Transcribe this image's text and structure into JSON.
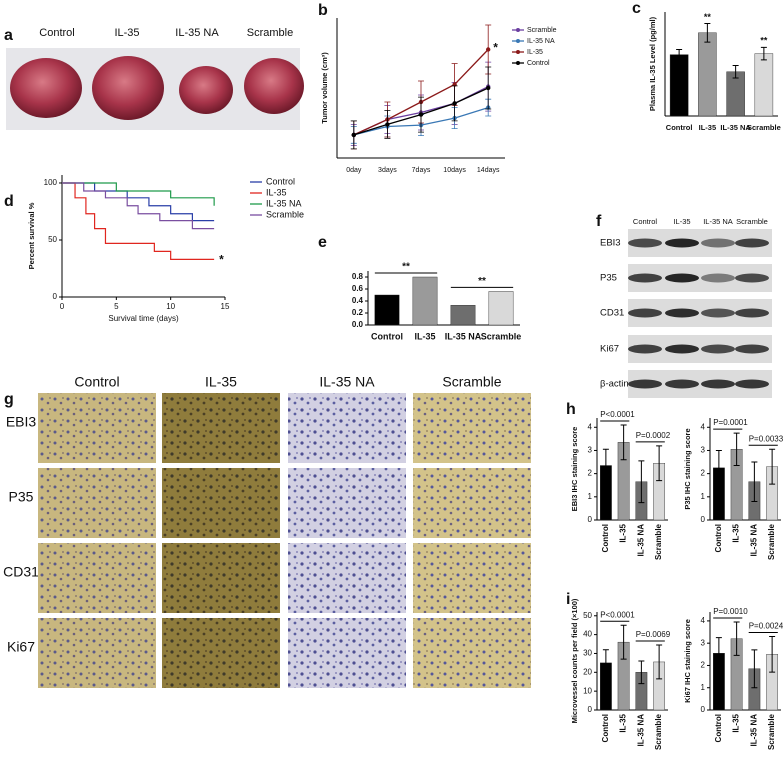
{
  "panel_labels": [
    "a",
    "b",
    "c",
    "d",
    "e",
    "f",
    "g",
    "h",
    "i"
  ],
  "tumor_photo": {
    "labels": [
      "Control",
      "IL-35",
      "IL-35 NA",
      "Scramble"
    ]
  },
  "western_blot": {
    "lanes": [
      "Control",
      "IL-35",
      "IL-35 NA",
      "Scramble"
    ],
    "rows": [
      "EBI3",
      "P35",
      "CD31",
      "Ki67",
      "β-actin"
    ]
  },
  "ihc": {
    "columns": [
      "Control",
      "IL-35",
      "IL-35 NA",
      "Scramble"
    ],
    "rows": [
      "EBI3",
      "P35",
      "CD31",
      "Ki67"
    ]
  },
  "chart_data": [
    {
      "type": "line",
      "ylabel": "Tumor volume (cm³)",
      "categories": [
        "0day",
        "3days",
        "7days",
        "10days",
        "14days"
      ],
      "ylim": [
        0,
        2.0
      ],
      "series": [
        {
          "name": "Scramble",
          "color": "#6b3fa0",
          "values": [
            0.33,
            0.55,
            0.65,
            0.78,
            1.02
          ],
          "errors": [
            0.15,
            0.2,
            0.25,
            0.3,
            0.35
          ]
        },
        {
          "name": "IL-35 NA",
          "color": "#3a78b5",
          "values": [
            0.33,
            0.45,
            0.47,
            0.57,
            0.72
          ],
          "errors": [
            0.12,
            0.15,
            0.15,
            0.15,
            0.12
          ]
        },
        {
          "name": "IL-35",
          "color": "#8b1a1a",
          "values": [
            0.33,
            0.55,
            0.8,
            1.05,
            1.55
          ],
          "errors": [
            0.2,
            0.25,
            0.3,
            0.3,
            0.35
          ]
        },
        {
          "name": "Control",
          "color": "#000000",
          "values": [
            0.33,
            0.48,
            0.62,
            0.78,
            1.0
          ],
          "errors": [
            0.2,
            0.2,
            0.25,
            0.25,
            0.3
          ]
        }
      ],
      "annotations": [
        "*"
      ]
    },
    {
      "type": "bar",
      "ylabel": "Plasma IL-35 Level (pg/ml)",
      "categories": [
        "Control",
        "IL-35",
        "IL-35 NA",
        "Scramble"
      ],
      "values": [
        118,
        160,
        85,
        120
      ],
      "errors": [
        10,
        18,
        12,
        12
      ],
      "colors": [
        "#000000",
        "#9a9a9a",
        "#6e6e6e",
        "#d9d9d9"
      ],
      "ylim": [
        0,
        200
      ],
      "annotations": [
        "**",
        "**"
      ]
    },
    {
      "type": "step",
      "ylabel": "Percent survival %",
      "xlabel": "Survival time (days)",
      "xlim": [
        0,
        15
      ],
      "xticks": [
        0,
        5,
        10,
        15
      ],
      "ylim": [
        0,
        107
      ],
      "yticks": [
        0,
        50,
        100
      ],
      "series": [
        {
          "name": "Control",
          "color": "#2a3fa8",
          "x": [
            0,
            3,
            6,
            8,
            10,
            12,
            14
          ],
          "values": [
            100,
            93,
            87,
            80,
            73,
            67,
            67
          ]
        },
        {
          "name": "IL-35",
          "color": "#e0261f",
          "x": [
            0,
            1.2,
            2.2,
            3,
            4,
            8.5,
            10,
            14
          ],
          "values": [
            100,
            87,
            73,
            60,
            47,
            40,
            33,
            33
          ]
        },
        {
          "name": "IL-35 NA",
          "color": "#1e9a4a",
          "x": [
            0,
            5,
            10,
            14
          ],
          "values": [
            100,
            93,
            87,
            80
          ]
        },
        {
          "name": "Scramble",
          "color": "#7a4fa0",
          "x": [
            0,
            2,
            4,
            6,
            7,
            9,
            12,
            14
          ],
          "values": [
            100,
            93,
            87,
            80,
            73,
            67,
            60,
            60
          ]
        }
      ],
      "annotations": [
        "*"
      ]
    },
    {
      "type": "bar",
      "categories": [
        "Control",
        "IL-35",
        "IL-35 NA",
        "Scramble"
      ],
      "values": [
        0.5,
        0.8,
        0.33,
        0.56
      ],
      "colors": [
        "#000000",
        "#9a9a9a",
        "#6e6e6e",
        "#d9d9d9"
      ],
      "ylim": [
        0,
        0.9
      ],
      "yticks": [
        {
          "value": 0,
          "label": "0.0"
        },
        0.2,
        0.4,
        0.6,
        0.8
      ],
      "annotations": [
        "**",
        "**"
      ]
    },
    {
      "type": "bar",
      "ylabel": "EBI3 IHC staining score",
      "categories": [
        "Control",
        "IL-35",
        "IL-35 NA",
        "Scramble"
      ],
      "values": [
        2.35,
        3.35,
        1.65,
        2.45
      ],
      "errors": [
        0.7,
        0.75,
        0.9,
        0.75
      ],
      "colors": [
        "#000000",
        "#9a9a9a",
        "#6e6e6e",
        "#d9d9d9"
      ],
      "ylim": [
        0,
        4.4
      ],
      "yticks": [
        0,
        1,
        2,
        3,
        4
      ],
      "annotations": [
        "P<0.0001",
        "P=0.0002"
      ]
    },
    {
      "type": "bar",
      "ylabel": "P35 IHC staining score",
      "categories": [
        "Control",
        "IL-35",
        "IL-35 NA",
        "Scramble"
      ],
      "values": [
        2.25,
        3.05,
        1.65,
        2.3
      ],
      "errors": [
        0.75,
        0.7,
        0.85,
        0.75
      ],
      "colors": [
        "#000000",
        "#9a9a9a",
        "#6e6e6e",
        "#d9d9d9"
      ],
      "ylim": [
        0,
        4.4
      ],
      "yticks": [
        0,
        1,
        2,
        3,
        4
      ],
      "annotations": [
        "P=0.0001",
        "P=0.0033"
      ]
    },
    {
      "type": "bar",
      "ylabel": "Microvessel counts per field (×100)",
      "categories": [
        "Control",
        "IL-35",
        "IL-35 NA",
        "Scramble"
      ],
      "values": [
        25,
        36,
        20,
        25.5
      ],
      "errors": [
        7,
        9,
        6,
        9
      ],
      "colors": [
        "#000000",
        "#9a9a9a",
        "#6e6e6e",
        "#d9d9d9"
      ],
      "ylim": [
        0,
        52
      ],
      "yticks": [
        0,
        10,
        20,
        30,
        40,
        50
      ],
      "annotations": [
        "P<0.0001",
        "P=0.0069"
      ]
    },
    {
      "type": "bar",
      "ylabel": "Ki67 IHC staining score",
      "categories": [
        "Control",
        "IL-35",
        "IL-35 NA",
        "Scramble"
      ],
      "values": [
        2.55,
        3.2,
        1.85,
        2.5
      ],
      "errors": [
        0.7,
        0.75,
        0.85,
        0.8
      ],
      "colors": [
        "#000000",
        "#9a9a9a",
        "#6e6e6e",
        "#d9d9d9"
      ],
      "ylim": [
        0,
        4.4
      ],
      "yticks": [
        0,
        1,
        2,
        3,
        4
      ],
      "annotations": [
        "P=0.0010",
        "P=0.0024"
      ]
    }
  ]
}
